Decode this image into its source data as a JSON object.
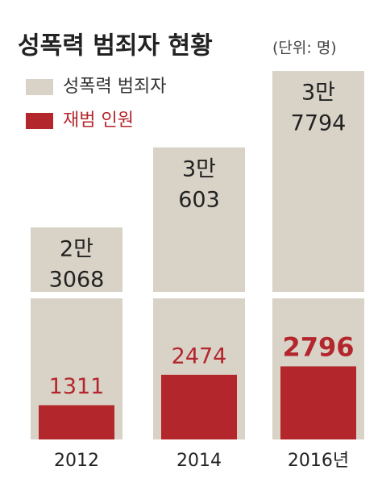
{
  "chart_data": {
    "type": "bar",
    "title": "성폭력 범죄자 현황",
    "subtitle": "(단위: 명)",
    "categories": [
      "2012",
      "2014",
      "2016년"
    ],
    "series": [
      {
        "name": "성폭력 범죄자",
        "color": "#d9d3c7",
        "values": [
          23068,
          30603,
          37794
        ],
        "value_labels": [
          [
            "2만",
            "3068"
          ],
          [
            "3만",
            "603"
          ],
          [
            "3만",
            "7794"
          ]
        ]
      },
      {
        "name": "재범 인원",
        "color": "#b3262c",
        "values": [
          1311,
          2474,
          2796
        ]
      }
    ],
    "ylim": [
      0,
      40000
    ],
    "axis_break": [
      5400,
      17000
    ],
    "legend": "top-left"
  }
}
